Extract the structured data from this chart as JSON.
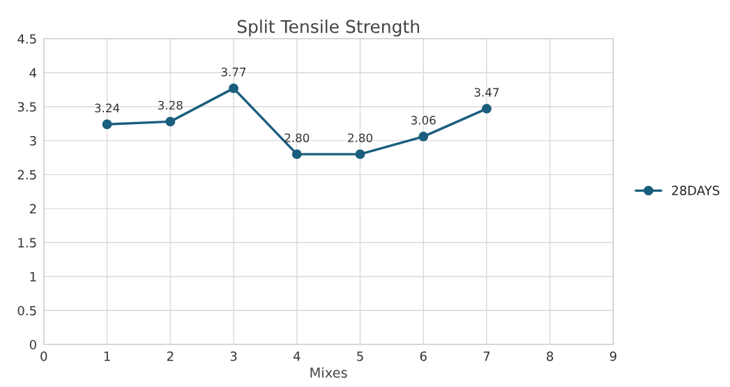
{
  "chart_data": {
    "type": "line",
    "title": "Split Tensile Strength",
    "xlabel": "Mixes",
    "x": [
      1,
      2,
      3,
      4,
      5,
      6,
      7
    ],
    "series": [
      {
        "name": "28DAYS",
        "color": "#1b5e7e",
        "values": [
          3.24,
          3.28,
          3.77,
          2.8,
          2.8,
          3.06,
          3.47
        ],
        "value_labels": [
          "3.24",
          "3.28",
          "3.77",
          "2.80",
          "2.80",
          "3.06",
          "3.47"
        ]
      }
    ],
    "xlim": [
      0,
      9
    ],
    "xticks": [
      0,
      1,
      2,
      3,
      4,
      5,
      6,
      7,
      8,
      9
    ],
    "ylim": [
      0,
      4.5
    ],
    "yticks": [
      0,
      0.5,
      1,
      1.5,
      2,
      2.5,
      3,
      3.5,
      4,
      4.5
    ],
    "grid": true,
    "legend": "right",
    "marker": "circle",
    "line_style": "solid"
  }
}
